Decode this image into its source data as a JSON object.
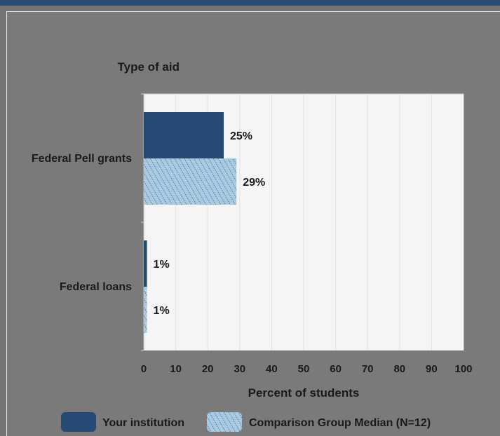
{
  "chart_data": {
    "type": "bar",
    "orientation": "horizontal",
    "title": "Type of aid",
    "xlabel": "Percent of students",
    "ylabel": "Type of aid",
    "categories": [
      "Federal Pell grants",
      "Federal loans"
    ],
    "series": [
      {
        "name": "Your institution",
        "values": [
          25,
          1
        ],
        "labels": [
          "25%",
          "1%"
        ],
        "color": "#264a73",
        "pattern": "solid"
      },
      {
        "name": "Comparison Group Median (N=12)",
        "values": [
          29,
          1
        ],
        "labels": [
          "29%",
          "1%"
        ],
        "color": "#a9c9e8",
        "pattern": "diagonal-hatch"
      }
    ],
    "xlim": [
      0,
      100
    ],
    "xticks": [
      "0",
      "10",
      "20",
      "30",
      "40",
      "50",
      "60",
      "70",
      "80",
      "90",
      "100"
    ],
    "grid": true,
    "legend_position": "bottom"
  },
  "colors": {
    "background": "#757575",
    "plot_area": "#f5f5f5",
    "gridline": "#d9e3ec",
    "accent_rule": "#2a4d78"
  }
}
